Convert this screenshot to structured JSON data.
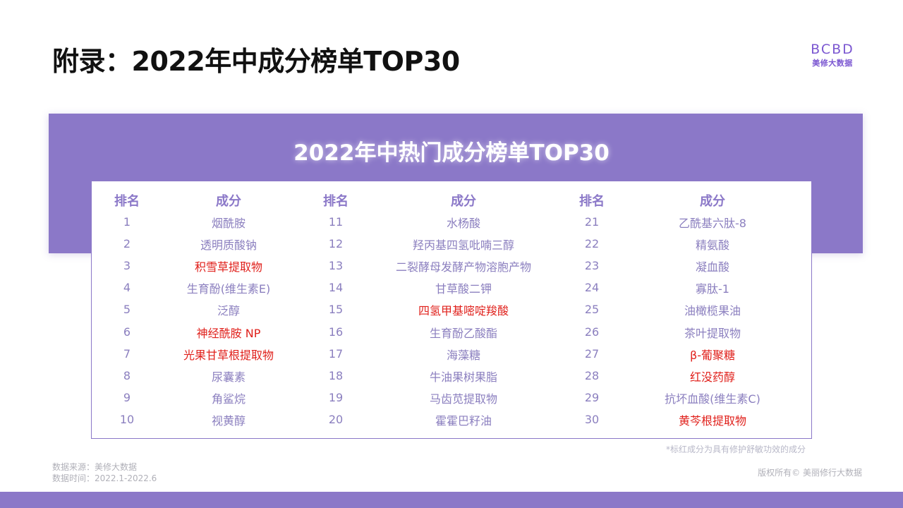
{
  "page_title": "附录：2022年中成分榜单TOP30",
  "logo": {
    "mark": "BCBD",
    "sub": "美修大数据"
  },
  "banner_title": "2022年中热门成分榜单TOP30",
  "columns": [
    {
      "rank_header": "排名",
      "ingredient_header": "成分",
      "rows": [
        {
          "rank": "1",
          "name": "烟酰胺",
          "highlight": false
        },
        {
          "rank": "2",
          "name": "透明质酸钠",
          "highlight": false
        },
        {
          "rank": "3",
          "name": "积雪草提取物",
          "highlight": true
        },
        {
          "rank": "4",
          "name": "生育酚(维生素E)",
          "highlight": false
        },
        {
          "rank": "5",
          "name": "泛醇",
          "highlight": false
        },
        {
          "rank": "6",
          "name": "神经酰胺 NP",
          "highlight": true
        },
        {
          "rank": "7",
          "name": "光果甘草根提取物",
          "highlight": true
        },
        {
          "rank": "8",
          "name": "尿囊素",
          "highlight": false
        },
        {
          "rank": "9",
          "name": "角鲨烷",
          "highlight": false
        },
        {
          "rank": "10",
          "name": "视黄醇",
          "highlight": false
        }
      ]
    },
    {
      "rank_header": "排名",
      "ingredient_header": "成分",
      "rows": [
        {
          "rank": "11",
          "name": "水杨酸",
          "highlight": false
        },
        {
          "rank": "12",
          "name": "羟丙基四氢吡喃三醇",
          "highlight": false
        },
        {
          "rank": "13",
          "name": "二裂酵母发酵产物溶胞产物",
          "highlight": false
        },
        {
          "rank": "14",
          "name": "甘草酸二钾",
          "highlight": false
        },
        {
          "rank": "15",
          "name": "四氢甲基嘧啶羧酸",
          "highlight": true
        },
        {
          "rank": "16",
          "name": "生育酚乙酸酯",
          "highlight": false
        },
        {
          "rank": "17",
          "name": "海藻糖",
          "highlight": false
        },
        {
          "rank": "18",
          "name": "牛油果树果脂",
          "highlight": false
        },
        {
          "rank": "19",
          "name": "马齿苋提取物",
          "highlight": false
        },
        {
          "rank": "20",
          "name": "霍霍巴籽油",
          "highlight": false
        }
      ]
    },
    {
      "rank_header": "排名",
      "ingredient_header": "成分",
      "rows": [
        {
          "rank": "21",
          "name": "乙酰基六肽-8",
          "highlight": false
        },
        {
          "rank": "22",
          "name": "精氨酸",
          "highlight": false
        },
        {
          "rank": "23",
          "name": "凝血酸",
          "highlight": false
        },
        {
          "rank": "24",
          "name": "寡肽-1",
          "highlight": false
        },
        {
          "rank": "25",
          "name": "油橄榄果油",
          "highlight": false
        },
        {
          "rank": "26",
          "name": "茶叶提取物",
          "highlight": false
        },
        {
          "rank": "27",
          "name": "β-葡聚糖",
          "highlight": true
        },
        {
          "rank": "28",
          "name": "红没药醇",
          "highlight": true
        },
        {
          "rank": "29",
          "name": "抗坏血酸(维生素C)",
          "highlight": false
        },
        {
          "rank": "30",
          "name": "黄芩根提取物",
          "highlight": true
        }
      ]
    }
  ],
  "colors": {
    "accent": "#8b78c8",
    "highlight": "#e0201b",
    "cell_text": "#8b7fbf"
  },
  "note": "*标红成分为具有修护舒敏功效的成分",
  "source_line1": "数据来源：美修大数据",
  "source_line2": "数据时间：2022.1-2022.6",
  "copyright": "版权所有© 美丽修行大数据"
}
